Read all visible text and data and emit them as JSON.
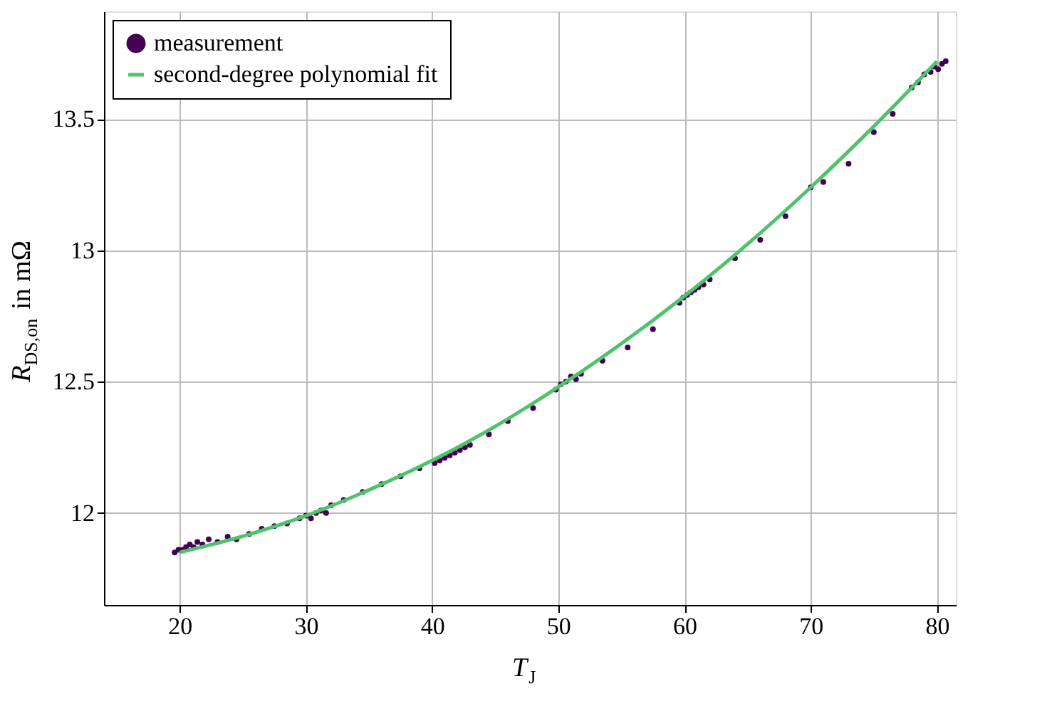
{
  "chart_data": {
    "type": "scatter",
    "xlabel": "T$_{J}$",
    "ylabel": "R$_{DS,on}$ in mΩ",
    "xlim": [
      14,
      81.5
    ],
    "ylim": [
      11.65,
      13.91
    ],
    "xticks": [
      20,
      30,
      40,
      50,
      60,
      70,
      80
    ],
    "yticks": [
      12,
      12.5,
      13,
      13.5
    ],
    "grid": true,
    "legend": "top left",
    "series": [
      {
        "name": "measurement",
        "marker": "circle",
        "color": "#440154",
        "x": [
          19.6,
          19.9,
          20.2,
          20.5,
          20.8,
          21.1,
          21.4,
          21.8,
          22.3,
          23.0,
          23.8,
          24.5,
          25.5,
          26.5,
          27.5,
          28.5,
          29.5,
          30.0,
          30.4,
          30.8,
          31.2,
          31.6,
          32.0,
          33.0,
          34.5,
          36.0,
          37.5,
          39.0,
          40.2,
          40.6,
          41.0,
          41.4,
          41.8,
          42.2,
          42.6,
          43.0,
          44.5,
          46.0,
          48.0,
          49.8,
          50.2,
          50.6,
          51.0,
          51.4,
          51.8,
          53.5,
          55.5,
          57.5,
          59.6,
          59.9,
          60.2,
          60.5,
          60.8,
          61.1,
          61.5,
          62.0,
          64.0,
          66.0,
          68.0,
          70.0,
          71.0,
          73.0,
          75.0,
          76.5,
          78.0,
          78.5,
          79.0,
          79.5,
          79.8,
          80.1,
          80.4,
          80.7
        ],
        "values": [
          11.85,
          11.86,
          11.86,
          11.87,
          11.88,
          11.87,
          11.89,
          11.88,
          11.9,
          11.89,
          11.91,
          11.9,
          11.92,
          11.94,
          11.95,
          11.96,
          11.98,
          11.99,
          11.98,
          12.0,
          12.01,
          12.0,
          12.03,
          12.05,
          12.08,
          12.11,
          12.14,
          12.17,
          12.19,
          12.2,
          12.21,
          12.22,
          12.23,
          12.24,
          12.25,
          12.26,
          12.3,
          12.35,
          12.4,
          12.47,
          12.49,
          12.5,
          12.52,
          12.51,
          12.53,
          12.58,
          12.63,
          12.7,
          12.8,
          12.82,
          12.83,
          12.84,
          12.85,
          12.86,
          12.87,
          12.89,
          12.97,
          13.04,
          13.13,
          13.24,
          13.26,
          13.33,
          13.45,
          13.52,
          13.62,
          13.64,
          13.67,
          13.68,
          13.7,
          13.69,
          13.71,
          13.72
        ]
      },
      {
        "name": "second-degree polynomial fit",
        "type": "line",
        "color": "#4ec36b",
        "x": [
          20,
          25,
          30,
          35,
          40,
          45,
          50,
          55,
          60,
          65,
          70,
          75,
          80
        ],
        "values": [
          11.85,
          11.912,
          11.99,
          12.088,
          12.2,
          12.33,
          12.48,
          12.645,
          12.826,
          13.024,
          13.24,
          13.472,
          13.72
        ]
      }
    ]
  }
}
